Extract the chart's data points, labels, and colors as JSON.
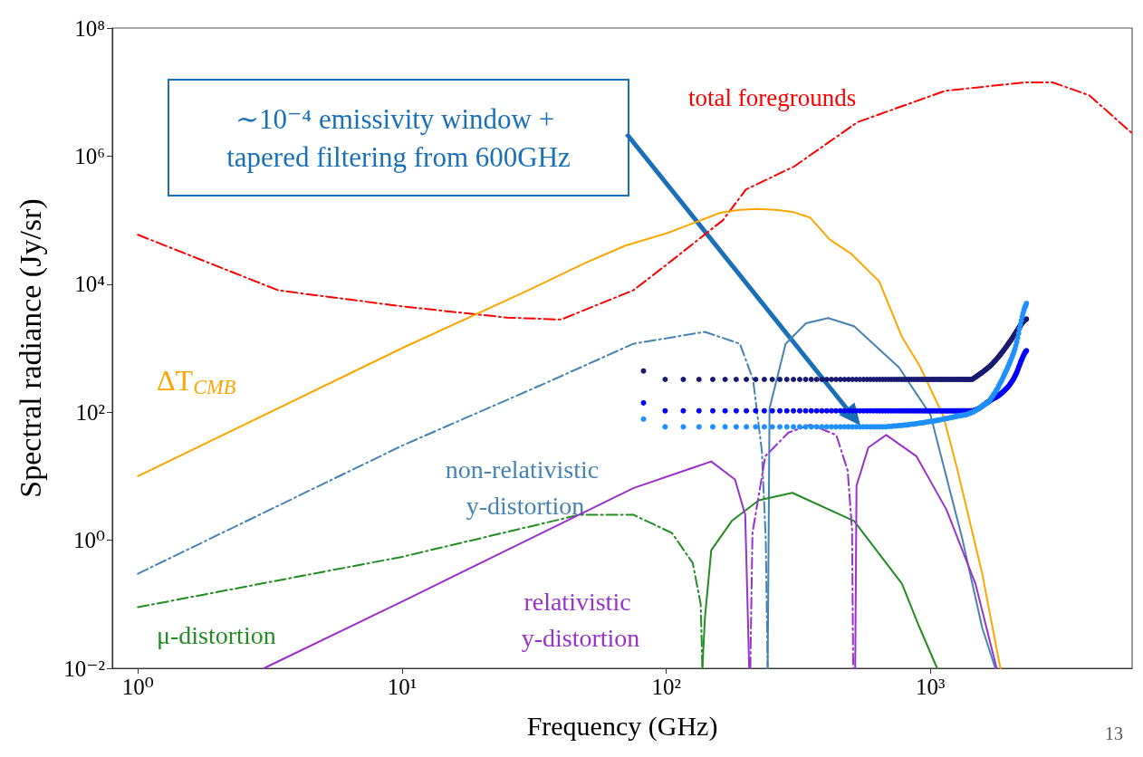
{
  "chart_data": {
    "type": "line",
    "xlabel": "Frequency (GHz)",
    "ylabel": "Spectral radiance (Jy/sr)",
    "log": "xy",
    "xlim": [
      0.8,
      5800
    ],
    "ylim": [
      0.01,
      100000000
    ],
    "xticks": [
      {
        "value": 1,
        "label": "10⁰"
      },
      {
        "value": 10,
        "label": "10¹"
      },
      {
        "value": 100,
        "label": "10²"
      },
      {
        "value": 1000,
        "label": "10³"
      }
    ],
    "yticks": [
      {
        "value": 0.01,
        "label": "10⁻²"
      },
      {
        "value": 1,
        "label": "10⁰"
      },
      {
        "value": 100,
        "label": "10²"
      },
      {
        "value": 10000,
        "label": "10⁴"
      },
      {
        "value": 1000000,
        "label": "10⁶"
      },
      {
        "value": 100000000,
        "label": "10⁸"
      }
    ],
    "x": [
      82,
      99,
      116,
      133,
      150,
      167,
      184,
      201,
      218,
      235,
      252,
      269,
      286,
      303,
      320,
      337,
      354,
      371,
      388,
      405,
      422,
      439,
      456,
      473,
      490,
      507,
      524,
      541,
      558,
      575,
      592,
      609,
      626,
      643,
      660,
      677,
      694,
      711,
      728,
      745,
      762,
      779,
      796,
      813,
      830,
      847,
      864,
      881,
      898,
      915,
      932,
      949,
      966,
      983,
      1000,
      1017,
      1034,
      1051,
      1068,
      1085,
      1102,
      1119,
      1136,
      1153,
      1170,
      1187,
      1204,
      1221,
      1238,
      1255,
      1272,
      1289,
      1306,
      1323,
      1340,
      1357,
      1374,
      1391,
      1408,
      1425,
      1442,
      1459,
      1476,
      1493,
      1510,
      1527,
      1544,
      1561,
      1578,
      1595,
      1612,
      1629,
      1646,
      1663,
      1680,
      1697,
      1714,
      1731,
      1748,
      1765,
      1782,
      1799,
      1816,
      1833,
      1850,
      1867,
      1884,
      1901,
      1918,
      1935,
      1952,
      1969,
      1986,
      2003,
      2020,
      2037,
      2054,
      2071,
      2088,
      2105,
      2122,
      2139,
      2156,
      2173,
      2190,
      2207,
      2224,
      2241,
      2258,
      2275,
      2292,
      2309
    ],
    "series": [
      {
        "name": "total foregrounds",
        "color": "#ff0000",
        "line_style": "dashdot",
        "x": [
          1,
          3.4,
          10,
          25,
          40,
          75,
          100,
          164,
          200,
          305,
          530,
          1140,
          2300,
          2900,
          3990,
          5780
        ],
        "values": [
          59000,
          8000,
          4500,
          3000,
          2800,
          8000,
          20000,
          100000,
          300000,
          690000,
          3400000,
          10500000,
          14200000,
          14200000,
          8900000,
          2300000
        ]
      },
      {
        "name": "ΔT$_{CMB}$",
        "color": "#ffa500",
        "line_style": "solid",
        "x": [
          1,
          10,
          30,
          50,
          70,
          100,
          160,
          190,
          220,
          260,
          300,
          350,
          415,
          500,
          640,
          780,
          910,
          1120,
          1260,
          1570,
          1840
        ],
        "values": [
          10,
          1000,
          8000,
          22000,
          40000,
          62000,
          130000,
          145000,
          150000,
          145000,
          135000,
          110000,
          50000,
          30000,
          11000,
          1500,
          530,
          86,
          13.5,
          0.3,
          0.01
        ]
      },
      {
        "name": "non-relativistic y-distortion",
        "color": "#4682b4",
        "line_style": "dashdot",
        "x": [
          1,
          10,
          34.6,
          75,
          140,
          190,
          213,
          230,
          238,
          242
        ],
        "values": [
          0.3,
          30,
          280,
          1170,
          1800,
          1170,
          325,
          25,
          1.05,
          0.01
        ]
      },
      {
        "color": "#4682b4",
        "line_style": "solid",
        "x": [
          242,
          244,
          246,
          283,
          338,
          410,
          514,
          760,
          1000,
          1320,
          1570,
          1760
        ],
        "values": [
          0.01,
          1,
          115,
          1170,
          2450,
          2950,
          2200,
          500,
          91,
          1.05,
          0.043,
          0.01
        ]
      },
      {
        "name": "μ-distortion",
        "color": "#228b22",
        "line_style": "dashdot",
        "x": [
          1,
          10,
          47,
          75,
          105,
          126,
          135,
          137
        ],
        "values": [
          0.09,
          0.55,
          2.5,
          2.5,
          1.3,
          0.44,
          0.1,
          0.01
        ]
      },
      {
        "color": "#228b22",
        "line_style": "solid",
        "x": [
          137,
          140,
          148,
          177,
          224,
          300,
          514,
          780,
          908,
          1060
        ],
        "values": [
          0.01,
          0.06,
          0.7,
          2,
          4.2,
          5.5,
          2,
          0.21,
          0.044,
          0.01
        ]
      },
      {
        "name": "relativistic y-distortion",
        "color": "#9932cc",
        "line_style": "solid",
        "x": [
          3,
          10,
          75,
          148,
          182,
          199,
          206,
          300,
          519,
          525,
          582,
          680,
          885,
          1150,
          1480,
          1780
        ],
        "values": [
          0.01,
          0.11,
          6.5,
          17,
          8.9,
          2.5,
          0.01,
          null,
          0.01,
          7.1,
          28,
          44,
          20.5,
          3,
          0.21,
          0.01
        ]
      },
      {
        "color": "#9932cc",
        "line_style": "dashdot",
        "x": [
          208,
          212,
          237,
          290,
          352,
          440,
          486,
          505,
          510
        ],
        "values": [
          0.01,
          1.3,
          20.5,
          48,
          64,
          44,
          12.3,
          1.45,
          0.01
        ]
      },
      {
        "type": "scatter",
        "marker": "circle",
        "color": "#191970",
        "values": [
          440,
          325,
          325,
          325,
          325,
          325,
          325,
          325,
          325,
          325,
          325,
          325,
          325,
          325,
          325,
          325,
          325,
          325,
          325,
          325,
          325,
          325,
          325,
          325,
          325,
          325,
          325,
          325,
          325,
          325,
          325,
          325,
          325,
          325,
          325,
          325,
          325,
          325,
          325,
          325,
          325,
          325,
          325,
          325,
          325,
          325,
          325,
          325,
          325,
          325,
          325,
          325,
          325,
          325,
          325,
          325,
          325,
          325,
          325,
          325,
          325,
          325,
          325,
          325,
          325,
          325,
          325,
          325,
          325,
          325,
          325,
          325,
          325,
          325,
          325,
          325,
          325,
          325,
          325,
          325,
          325,
          340,
          350,
          360,
          375,
          385,
          400,
          410,
          425,
          440,
          455,
          470,
          490,
          505,
          525,
          545,
          570,
          595,
          620,
          650,
          680,
          710,
          745,
          780,
          820,
          860,
          900,
          950,
          1000,
          1050,
          1100,
          1160,
          1220,
          1280,
          1350,
          1420,
          1500,
          1580,
          1660,
          1750,
          1850,
          1950,
          2050,
          2150,
          2250,
          2350,
          2450,
          2550,
          2650,
          2750,
          2800,
          2850
        ]
      },
      {
        "type": "scatter",
        "marker": "circle",
        "color": "#0000ff",
        "values": [
          140,
          105,
          105,
          105,
          105,
          105,
          105,
          105,
          105,
          105,
          105,
          105,
          105,
          105,
          105,
          105,
          105,
          105,
          105,
          105,
          105,
          105,
          105,
          105,
          105,
          105,
          105,
          105,
          105,
          105,
          105,
          105,
          105,
          105,
          105,
          105,
          105,
          105,
          105,
          105,
          105,
          105,
          105,
          105,
          105,
          105,
          105,
          105,
          105,
          105,
          105,
          105,
          105,
          105,
          105,
          105,
          105,
          105,
          105,
          105,
          105,
          105,
          105,
          105,
          105,
          105,
          105,
          105,
          105,
          105,
          105,
          105,
          105,
          105,
          105,
          105,
          105,
          105,
          105,
          105,
          105,
          106,
          108,
          110,
          112,
          115,
          118,
          122,
          126,
          130,
          135,
          140,
          143,
          147,
          151,
          155,
          159,
          163,
          167,
          170,
          174,
          178,
          183,
          189,
          195,
          202,
          209,
          216,
          224,
          232,
          241,
          250,
          260,
          275,
          290,
          305,
          320,
          340,
          365,
          390,
          420,
          455,
          495,
          540,
          590,
          640,
          690,
          740,
          790,
          840,
          880,
          910
        ]
      },
      {
        "type": "scatter",
        "marker": "circle",
        "color": "#1e90ff",
        "values": [
          78,
          59,
          59,
          59,
          59,
          59,
          59,
          59,
          59,
          59,
          59,
          59,
          59,
          59,
          59,
          59,
          59,
          59,
          59,
          59,
          59,
          59,
          59,
          59,
          59,
          59,
          59,
          59,
          59,
          59,
          59,
          59,
          59,
          59,
          59,
          59,
          60,
          60,
          61,
          61,
          62,
          62,
          63,
          63,
          64,
          65,
          65,
          66,
          67,
          68,
          68,
          69,
          70,
          71,
          72,
          72,
          73,
          74,
          75,
          76,
          77,
          78,
          79,
          80,
          81,
          82,
          83,
          84,
          85,
          86,
          87,
          88,
          89,
          90,
          90,
          91,
          92,
          94,
          96,
          98,
          100,
          102,
          105,
          108,
          111,
          115,
          119,
          123,
          127,
          131,
          135,
          137,
          140,
          146,
          155,
          165,
          175,
          186,
          198,
          210,
          225,
          240,
          260,
          280,
          300,
          325,
          350,
          380,
          410,
          445,
          480,
          520,
          565,
          615,
          670,
          730,
          800,
          880,
          970,
          1100,
          1250,
          1450,
          1700,
          2000,
          2350,
          2700,
          3100,
          3500,
          3900,
          4300,
          4600,
          5000
        ]
      }
    ],
    "annotations": [
      "∼10⁻⁴ emissivity window + tapered filtering from 600GHz",
      "13"
    ]
  }
}
